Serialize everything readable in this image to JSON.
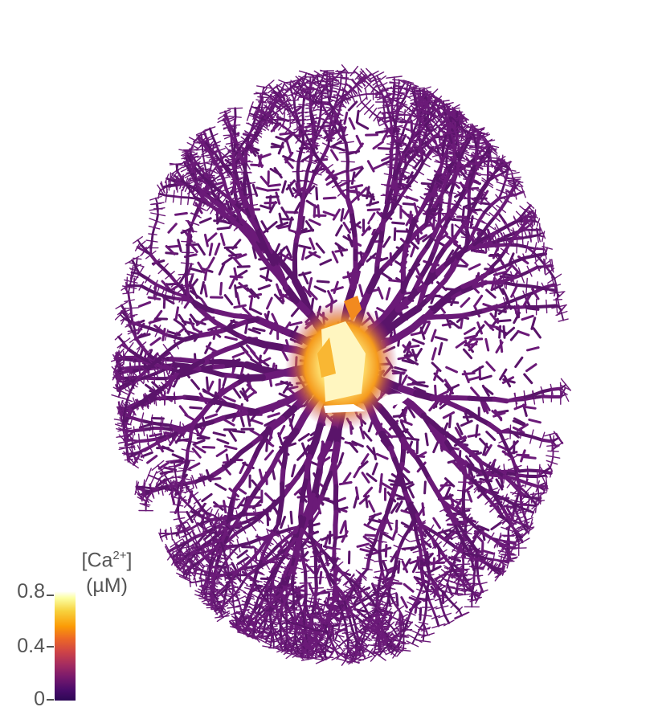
{
  "colorbar": {
    "title_main": "[Ca",
    "title_sup": "2+",
    "title_close": "]",
    "title_unit": "(µM)",
    "ticks": [
      "0.8",
      "0.4",
      "0"
    ],
    "colormap": "inferno"
  },
  "colors": {
    "neuron_base": "#6b1a78",
    "neuron_dark": "#5a146a",
    "soma_hot": "#fff3b0",
    "soma_warm": "#f5a623"
  }
}
